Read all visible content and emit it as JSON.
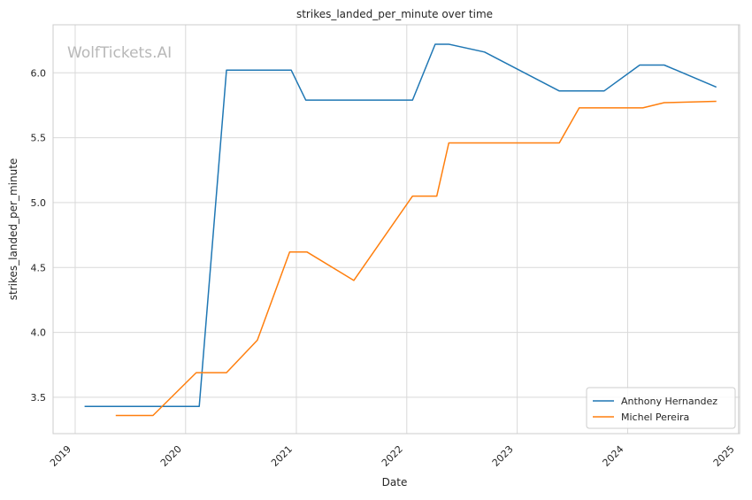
{
  "watermark": "WolfTickets.AI",
  "chart_data": {
    "type": "line",
    "title": "strikes_landed_per_minute over time",
    "xlabel": "Date",
    "ylabel": "strikes_landed_per_minute",
    "xlim": [
      "2018-10-20",
      "2025-01-05"
    ],
    "ylim": [
      3.22,
      6.37
    ],
    "x_ticks": [
      "2019",
      "2020",
      "2021",
      "2022",
      "2023",
      "2024",
      "2025"
    ],
    "y_ticks": [
      "3.5",
      "4.0",
      "4.5",
      "5.0",
      "5.5",
      "6.0"
    ],
    "grid": true,
    "legend_position": "lower-right",
    "series": [
      {
        "name": "Anthony Hernandez",
        "color": "#1f77b4",
        "points": [
          [
            "2019-02-01",
            3.43
          ],
          [
            "2020-02-15",
            3.43
          ],
          [
            "2020-05-15",
            6.02
          ],
          [
            "2020-12-15",
            6.02
          ],
          [
            "2021-02-01",
            5.79
          ],
          [
            "2022-01-20",
            5.79
          ],
          [
            "2022-04-05",
            6.22
          ],
          [
            "2022-05-20",
            6.22
          ],
          [
            "2022-09-15",
            6.16
          ],
          [
            "2023-05-20",
            5.86
          ],
          [
            "2023-10-15",
            5.86
          ],
          [
            "2024-02-10",
            6.06
          ],
          [
            "2024-05-01",
            6.06
          ],
          [
            "2024-10-20",
            5.89
          ]
        ]
      },
      {
        "name": "Michel Pereira",
        "color": "#ff7f0e",
        "points": [
          [
            "2019-05-15",
            3.36
          ],
          [
            "2019-09-15",
            3.36
          ],
          [
            "2020-02-05",
            3.69
          ],
          [
            "2020-05-15",
            3.69
          ],
          [
            "2020-08-25",
            3.94
          ],
          [
            "2020-12-10",
            4.62
          ],
          [
            "2021-02-05",
            4.62
          ],
          [
            "2021-07-10",
            4.4
          ],
          [
            "2022-01-20",
            5.05
          ],
          [
            "2022-04-10",
            5.05
          ],
          [
            "2022-05-20",
            5.46
          ],
          [
            "2023-05-20",
            5.46
          ],
          [
            "2023-07-25",
            5.73
          ],
          [
            "2024-02-20",
            5.73
          ],
          [
            "2024-05-01",
            5.77
          ],
          [
            "2024-10-20",
            5.78
          ]
        ]
      }
    ]
  }
}
